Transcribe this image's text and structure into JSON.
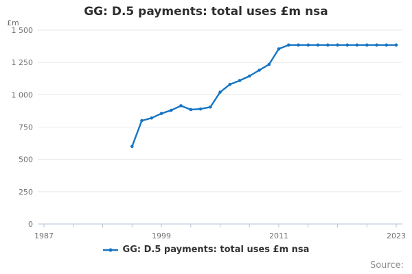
{
  "title": "GG: D.5 payments: total uses £m nsa",
  "y_axis_unit": "£m",
  "legend": {
    "series_label": "GG: D.5 payments: total uses £m nsa"
  },
  "source": {
    "label": "Source:"
  },
  "colors": {
    "line": "#1474c4",
    "grid": "#e6e6e6",
    "axis": "#b5c3d6",
    "tick_text": "#6f6f6f",
    "title_text": "#2e2e2e",
    "legend_text": "#333333",
    "source_text": "#8f8f8f"
  },
  "chart_data": {
    "type": "line",
    "title": "GG: D.5 payments: total uses £m nsa",
    "xlabel": "",
    "ylabel": "£m",
    "series": [
      {
        "name": "GG: D.5 payments: total uses £m nsa",
        "x": [
          1996,
          1997,
          1998,
          1999,
          2000,
          2001,
          2002,
          2003,
          2004,
          2005,
          2006,
          2007,
          2008,
          2009,
          2010,
          2011,
          2012,
          2013,
          2014,
          2015,
          2016,
          2017,
          2018,
          2019,
          2020,
          2021,
          2022,
          2023
        ],
        "values": [
          600,
          800,
          820,
          855,
          880,
          915,
          885,
          890,
          905,
          1020,
          1080,
          1110,
          1145,
          1190,
          1235,
          1355,
          1385,
          1385,
          1385,
          1385,
          1385,
          1385,
          1385,
          1385,
          1385,
          1385,
          1385,
          1385
        ]
      }
    ],
    "xlim": [
      1986.4,
      2023.6
    ],
    "ylim": [
      0,
      1500
    ],
    "yticks": [
      0,
      250,
      500,
      750,
      1000,
      1250,
      1500
    ],
    "ytick_labels": [
      "0",
      "250",
      "500",
      "750",
      "1 000",
      "1 250",
      "1 500"
    ],
    "xticks_labeled": [
      1987,
      1999,
      2011,
      2023
    ],
    "xtick_minor_step": 3,
    "xtick_range": [
      1987,
      2023
    ],
    "grid": "horizontal",
    "legend_position": "bottom",
    "marker": "circle"
  }
}
